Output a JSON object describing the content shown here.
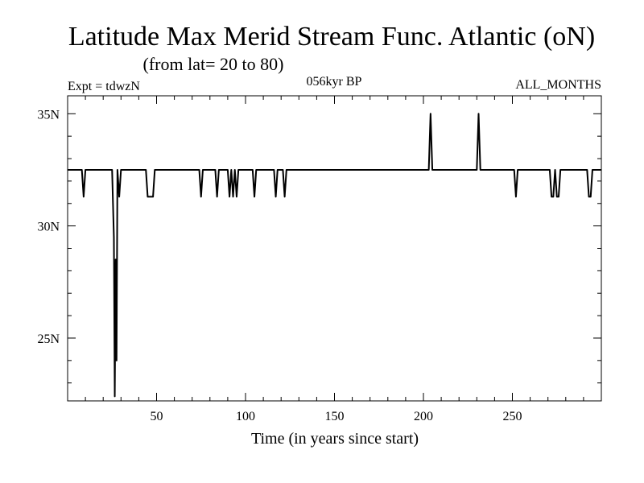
{
  "chart_data": {
    "type": "line",
    "title": "Latitude Max Merid Stream Func. Atlantic (oN)",
    "subtitle": "(from lat= 20 to 80)",
    "labels": {
      "left": "Expt = tdwzN",
      "center": "056kyr BP",
      "right": "ALL_MONTHS"
    },
    "xlabel": "Time (in years since start)",
    "ylabel": "",
    "xlim": [
      0,
      300
    ],
    "ylim": [
      22.2,
      35.8
    ],
    "x_ticks": [
      50,
      100,
      150,
      200,
      250
    ],
    "x_tick_labels": [
      "50",
      "100",
      "150",
      "200",
      "250"
    ],
    "y_ticks": [
      25,
      30,
      35
    ],
    "y_tick_labels": [
      "25N",
      "30N",
      "35N"
    ],
    "x_minor_step": 10,
    "y_minor_step": 1,
    "grid": false,
    "line_color": "#000000",
    "series": [
      {
        "x": [
          0,
          8,
          9,
          10,
          11,
          25,
          26,
          26.5,
          27,
          27.5,
          28,
          29,
          30,
          31,
          44,
          45,
          46,
          47,
          48,
          49,
          74,
          75,
          76,
          83,
          84,
          85,
          90,
          91,
          92,
          93,
          94,
          95,
          96,
          97,
          98,
          104,
          105,
          106,
          116,
          117,
          118,
          121,
          122,
          123,
          124,
          203,
          204,
          205,
          230,
          231,
          232,
          251,
          252,
          253,
          271,
          272,
          273,
          274,
          275,
          276,
          277,
          292,
          293,
          294,
          295,
          300
        ],
        "y": [
          32.5,
          32.5,
          31.3,
          32.5,
          32.5,
          32.5,
          29.5,
          22.4,
          28.5,
          24,
          32.5,
          31.3,
          32.5,
          32.5,
          32.5,
          31.3,
          31.3,
          31.3,
          31.3,
          32.5,
          32.5,
          31.3,
          32.5,
          32.5,
          31.3,
          32.5,
          32.5,
          31.3,
          32.5,
          31.3,
          32.5,
          31.3,
          32.5,
          32.5,
          32.5,
          32.5,
          31.3,
          32.5,
          32.5,
          31.3,
          32.5,
          32.5,
          31.3,
          32.5,
          32.5,
          32.5,
          35,
          32.5,
          32.5,
          35,
          32.5,
          32.5,
          31.3,
          32.5,
          32.5,
          31.3,
          31.3,
          32.5,
          31.3,
          31.3,
          32.5,
          32.5,
          31.3,
          31.3,
          32.5,
          32.5
        ]
      }
    ]
  }
}
